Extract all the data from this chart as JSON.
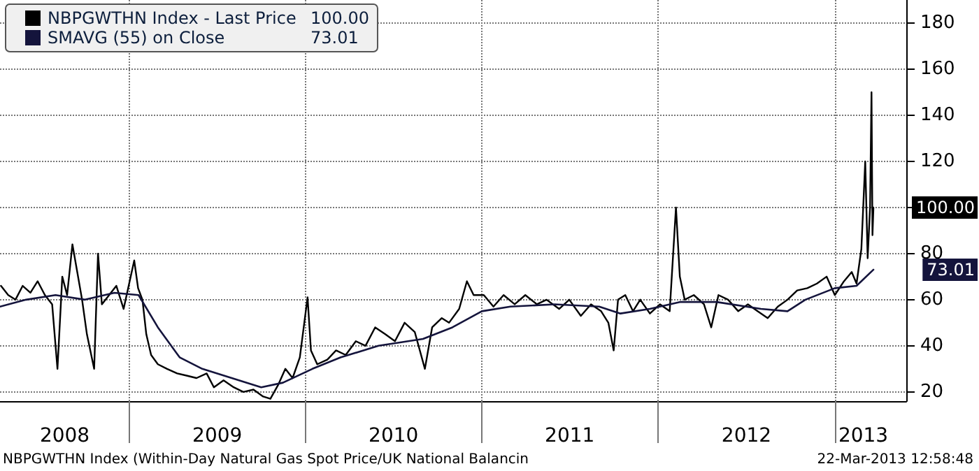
{
  "chart_data": {
    "type": "line",
    "x": [
      "2008-04-10",
      "2008-04-25",
      "2008-05-10",
      "2008-05-25",
      "2008-06-10",
      "2008-06-25",
      "2008-07-10",
      "2008-07-25",
      "2008-08-05",
      "2008-08-15",
      "2008-08-25",
      "2008-09-05",
      "2008-09-15",
      "2008-09-25",
      "2008-10-05",
      "2008-10-20",
      "2008-10-28",
      "2008-11-05",
      "2008-11-20",
      "2008-12-05",
      "2008-12-20",
      "2009-01-11",
      "2009-01-19",
      "2009-01-28",
      "2009-02-05",
      "2009-02-15",
      "2009-03-01",
      "2009-03-20",
      "2009-04-10",
      "2009-05-01",
      "2009-05-20",
      "2009-06-10",
      "2009-06-25",
      "2009-07-15",
      "2009-08-05",
      "2009-08-25",
      "2009-09-15",
      "2009-10-05",
      "2009-10-20",
      "2009-11-05",
      "2009-11-20",
      "2009-12-05",
      "2009-12-20",
      "2010-01-05",
      "2010-01-12",
      "2010-01-25",
      "2010-02-15",
      "2010-03-05",
      "2010-03-25",
      "2010-04-15",
      "2010-05-05",
      "2010-05-25",
      "2010-06-15",
      "2010-07-05",
      "2010-07-25",
      "2010-08-15",
      "2010-09-05",
      "2010-09-20",
      "2010-10-10",
      "2010-10-25",
      "2010-11-15",
      "2010-12-01",
      "2010-12-15",
      "2011-01-05",
      "2011-01-25",
      "2011-02-15",
      "2011-03-10",
      "2011-04-01",
      "2011-04-25",
      "2011-05-15",
      "2011-06-10",
      "2011-07-01",
      "2011-07-25",
      "2011-08-15",
      "2011-09-05",
      "2011-09-20",
      "2011-10-01",
      "2011-10-10",
      "2011-10-25",
      "2011-11-10",
      "2011-11-25",
      "2011-12-15",
      "2012-01-05",
      "2012-01-25",
      "2012-02-07",
      "2012-02-15",
      "2012-02-25",
      "2012-03-15",
      "2012-04-05",
      "2012-04-20",
      "2012-05-05",
      "2012-05-25",
      "2012-06-15",
      "2012-07-05",
      "2012-07-25",
      "2012-08-15",
      "2012-09-05",
      "2012-09-25",
      "2012-10-15",
      "2012-11-05",
      "2012-11-25",
      "2012-12-15",
      "2013-01-01",
      "2013-01-20",
      "2013-02-05",
      "2013-02-15",
      "2013-02-25",
      "2013-03-05",
      "2013-03-10",
      "2013-03-15",
      "2013-03-18",
      "2013-03-20",
      "2013-03-22"
    ],
    "series": [
      {
        "name": "NBPGWTHN Index - Last Price",
        "color": "#000000",
        "values": [
          66,
          62,
          60,
          66,
          63,
          68,
          62,
          58,
          30,
          70,
          62,
          84,
          72,
          60,
          45,
          30,
          80,
          58,
          62,
          66,
          56,
          77,
          65,
          60,
          45,
          36,
          32,
          30,
          28,
          27,
          26,
          28,
          22,
          25,
          22,
          20,
          21,
          18,
          17,
          23,
          30,
          26,
          35,
          61,
          38,
          32,
          34,
          38,
          36,
          42,
          40,
          48,
          45,
          42,
          50,
          46,
          30,
          48,
          52,
          50,
          56,
          68,
          62,
          62,
          57,
          62,
          58,
          62,
          58,
          60,
          56,
          60,
          53,
          58,
          55,
          50,
          38,
          60,
          62,
          55,
          60,
          54,
          58,
          55,
          100,
          70,
          60,
          62,
          58,
          48,
          62,
          60,
          55,
          58,
          55,
          52,
          57,
          60,
          64,
          65,
          67,
          70,
          62,
          68,
          72,
          67,
          82,
          120,
          78,
          100,
          150,
          88,
          100
        ]
      },
      {
        "name": "SMAVG (55) on Close",
        "color": "#14143c",
        "x": [
          "2008-04-08",
          "2008-06-01",
          "2008-08-01",
          "2008-10-01",
          "2008-12-01",
          "2009-01-20",
          "2009-03-01",
          "2009-04-15",
          "2009-06-01",
          "2009-08-01",
          "2009-10-01",
          "2009-11-15",
          "2010-01-15",
          "2010-03-15",
          "2010-06-01",
          "2010-09-01",
          "2010-11-01",
          "2011-01-01",
          "2011-03-01",
          "2011-06-01",
          "2011-09-01",
          "2011-10-15",
          "2011-12-15",
          "2012-02-15",
          "2012-05-01",
          "2012-08-01",
          "2012-09-25",
          "2012-11-01",
          "2013-01-01",
          "2013-02-15",
          "2013-03-22"
        ],
        "values": [
          57,
          60,
          62,
          60,
          63,
          62,
          48,
          35,
          30,
          26,
          22,
          24,
          30,
          35,
          40,
          43,
          48,
          55,
          57,
          58,
          57,
          54,
          56,
          59,
          59,
          56,
          55,
          60,
          65,
          66,
          73.01
        ]
      }
    ],
    "xlim": [
      "2008-04-08",
      "2013-05-29"
    ],
    "xticks": [
      {
        "value": "2009-01-01",
        "label": null
      },
      {
        "value": "2010-01-01",
        "label": null
      },
      {
        "value": "2011-01-01",
        "label": null
      },
      {
        "value": "2012-01-01",
        "label": null
      },
      {
        "value": "2013-01-01",
        "label": null
      },
      {
        "value": "2008-08-20",
        "label": "2008"
      },
      {
        "value": "2009-07-02",
        "label": "2009"
      },
      {
        "value": "2010-07-02",
        "label": "2010"
      },
      {
        "value": "2011-07-02",
        "label": "2011"
      },
      {
        "value": "2012-07-02",
        "label": "2012"
      },
      {
        "value": "2013-03-01",
        "label": "2013"
      }
    ],
    "ylim": [
      16,
      190
    ],
    "yticks": [
      20,
      40,
      60,
      80,
      {
        "value": 100,
        "label": null
      },
      120,
      140,
      160,
      180
    ],
    "grid": true,
    "legend": "top left",
    "line_style": "solid",
    "annotations": [
      "100.00",
      "73.01",
      "NBPGWTHN Index (Within-Day Natural Gas Spot Price/UK National Balancin",
      "22-Mar-2013 12:58:48"
    ]
  }
}
